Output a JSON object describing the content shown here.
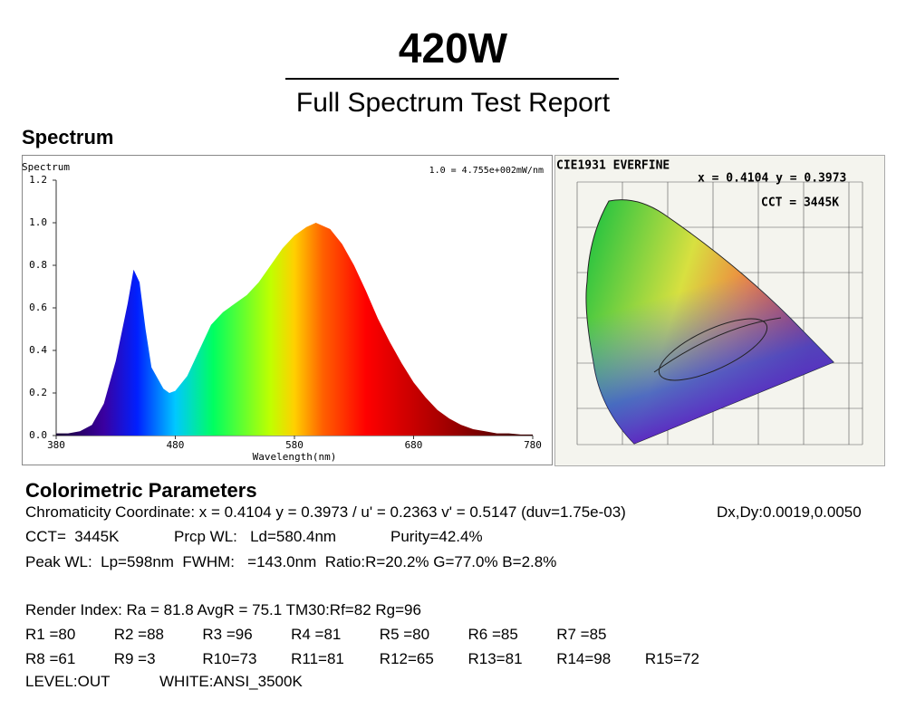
{
  "header": {
    "title": "420W",
    "subtitle": "Full Spectrum Test Report"
  },
  "spectrum_section": {
    "heading": "Spectrum"
  },
  "chart_data": {
    "type": "area",
    "y_label": "Spectrum",
    "x_label": "Wavelength(nm)",
    "annotation": "1.0 = 4.755e+002mW/nm",
    "x": [
      380,
      390,
      400,
      410,
      420,
      430,
      440,
      445,
      450,
      455,
      460,
      470,
      475,
      480,
      490,
      500,
      510,
      520,
      530,
      540,
      550,
      560,
      570,
      580,
      590,
      598,
      610,
      620,
      630,
      640,
      650,
      660,
      670,
      680,
      690,
      700,
      710,
      720,
      730,
      740,
      750,
      760,
      770,
      780
    ],
    "values": [
      0.01,
      0.01,
      0.02,
      0.05,
      0.15,
      0.35,
      0.62,
      0.78,
      0.72,
      0.5,
      0.32,
      0.22,
      0.2,
      0.21,
      0.28,
      0.4,
      0.52,
      0.58,
      0.62,
      0.66,
      0.72,
      0.8,
      0.88,
      0.94,
      0.98,
      1.0,
      0.97,
      0.9,
      0.8,
      0.68,
      0.55,
      0.44,
      0.34,
      0.25,
      0.18,
      0.12,
      0.08,
      0.05,
      0.03,
      0.02,
      0.01,
      0.01,
      0.005,
      0.005
    ],
    "xlim": [
      380,
      780
    ],
    "ylim": [
      0,
      1.2
    ],
    "xticks": [
      380,
      480,
      580,
      680,
      780
    ],
    "yticks": [
      {
        "value": 0,
        "label": "0.0"
      },
      {
        "value": 0.2,
        "label": "0.2"
      },
      {
        "value": 0.4,
        "label": "0.4"
      },
      {
        "value": 0.6,
        "label": "0.6"
      },
      {
        "value": 0.8,
        "label": "0.8"
      },
      {
        "value": 1,
        "label": "1.0"
      },
      {
        "value": 1.2,
        "label": "1.2"
      }
    ]
  },
  "cie_diagram": {
    "title": "CIE1931  EVERFINE",
    "coordinates": "x = 0.4104 y = 0.3973",
    "cct": "CCT = 3445K"
  },
  "parameters": {
    "heading": "Colorimetric Parameters",
    "line1": [
      "Chromaticity Coordinate: x = 0.4104 y = 0.3973 / u' = 0.2363 v' = 0.5147 (duv=1.75e-03)",
      "Dx,Dy:0.0019,0.0050"
    ],
    "line2": [
      "CCT=  3445K",
      "Prcp WL:   Ld=580.4nm",
      "Purity=42.4%"
    ],
    "line3": [
      "Peak WL:  Lp=598nm  FWHM:   =143.0nm  Ratio:R=20.2% G=77.0% B=2.8%"
    ],
    "render_index": "Render Index: Ra = 81.8 AvgR = 75.1 TM30:Rf=82 Rg=96",
    "r_row1": [
      "R1 =80",
      "R2 =88",
      "R3 =96",
      "R4 =81",
      "R5 =80",
      "R6 =85",
      "R7 =85"
    ],
    "r_row2": [
      "R8 =61",
      "R9 =3",
      "R10=73",
      "R11=81",
      "R12=65",
      "R13=81",
      "R14=98",
      "R15=72"
    ],
    "footer": [
      "LEVEL:OUT",
      "WHITE:ANSI_3500K"
    ]
  }
}
